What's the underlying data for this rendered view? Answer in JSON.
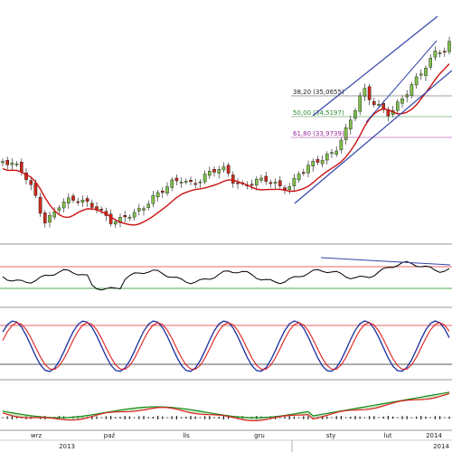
{
  "chart_data": [
    {
      "type": "candlestick",
      "panel": "price",
      "y_domain": [
        32.5,
        38.6
      ],
      "x_labels": [
        "wrz",
        "paź",
        "lis",
        "gru",
        "sty",
        "lut",
        "2014"
      ],
      "year_labels": [
        "2013",
        "2014"
      ],
      "fibonacci": [
        {
          "label": "38,20 (35,0655)",
          "value": 35.0655,
          "color": "#444444"
        },
        {
          "label": "50,00 (34,5197)",
          "value": 34.5197,
          "color": "#2e8b2e"
        },
        {
          "label": "61,80 (33,9739)",
          "value": 33.9739,
          "color": "#9b2a9b"
        }
      ],
      "colors": {
        "up": "#7fbf4a",
        "down": "#cc2a1a",
        "ma": "#cc1111",
        "trend": "#3344aa"
      }
    },
    {
      "type": "line",
      "panel": "oscillator-1",
      "bands": {
        "upper": "#e03030",
        "lower": "#1a8a1a"
      },
      "line_color": "#000000"
    },
    {
      "type": "line",
      "panel": "stochastic",
      "bands": {
        "upper": "#e03030",
        "lower": "#222222"
      },
      "series_colors": [
        "#1a2fa0",
        "#e02020"
      ]
    },
    {
      "type": "histogram",
      "panel": "macd",
      "series_colors": [
        "#1a8a1a",
        "#e02020"
      ],
      "fill": "#9fd99f",
      "fill_negative": "#e9a0a0"
    }
  ]
}
